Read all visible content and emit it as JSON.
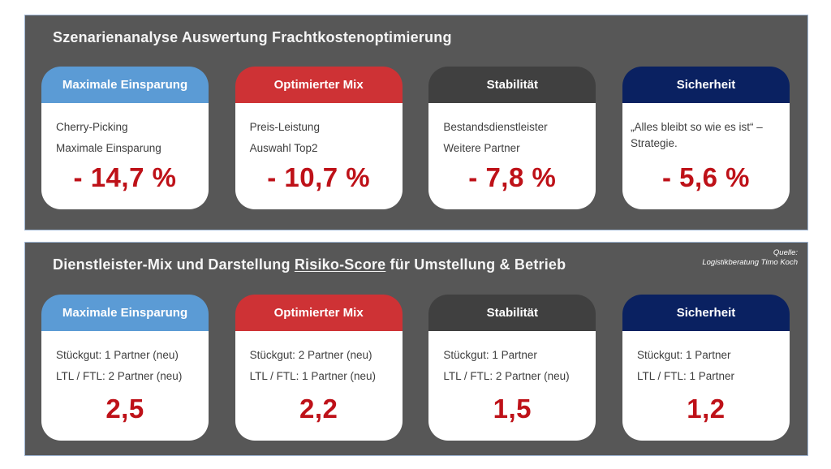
{
  "theme": {
    "panel_background": "#575757",
    "panel_border": "#9fb6d4",
    "value_color": "#be1118",
    "blue": "#5b9bd5",
    "red": "#ce3235",
    "dark_gray": "#404040",
    "navy": "#0a2161"
  },
  "panel1": {
    "title": "Szenarienanalyse Auswertung Frachtkostenoptimierung",
    "cards": [
      {
        "header": "Maximale Einsparung",
        "color": "#5b9bd5",
        "lines": [
          "Cherry-Picking",
          "Maximale Einsparung"
        ],
        "value": "- 14,7 %"
      },
      {
        "header": "Optimierter Mix",
        "color": "#ce3235",
        "lines": [
          "Preis-Leistung",
          "Auswahl Top2"
        ],
        "value": "- 10,7 %"
      },
      {
        "header": "Stabilität",
        "color": "#404040",
        "lines": [
          "Bestandsdienstleister",
          "Weitere Partner"
        ],
        "value": "- 7,8 %"
      },
      {
        "header": "Sicherheit",
        "color": "#0a2161",
        "lines": [
          "„Alles bleibt so wie es ist“ – Strategie."
        ],
        "value": "- 5,6 %"
      }
    ]
  },
  "panel2": {
    "title_prefix": "Dienstleister-Mix und Darstellung ",
    "title_underlined": "Risiko-Score",
    "title_suffix": " für Umstellung & Betrieb",
    "source_label": "Quelle:",
    "source_name": "Logistikberatung Timo Koch",
    "cards": [
      {
        "header": "Maximale Einsparung",
        "color": "#5b9bd5",
        "lines": [
          "Stückgut: 1 Partner (neu)",
          "LTL / FTL: 2 Partner (neu)"
        ],
        "value": "2,5"
      },
      {
        "header": "Optimierter Mix",
        "color": "#ce3235",
        "lines": [
          "Stückgut: 2 Partner (neu)",
          "LTL / FTL: 1 Partner (neu)"
        ],
        "value": "2,2"
      },
      {
        "header": "Stabilität",
        "color": "#404040",
        "lines": [
          "Stückgut: 1 Partner",
          "LTL / FTL: 2 Partner (neu)"
        ],
        "value": "1,5"
      },
      {
        "header": "Sicherheit",
        "color": "#0a2161",
        "lines": [
          "Stückgut: 1 Partner",
          "LTL / FTL: 1 Partner"
        ],
        "value": "1,2"
      }
    ]
  }
}
